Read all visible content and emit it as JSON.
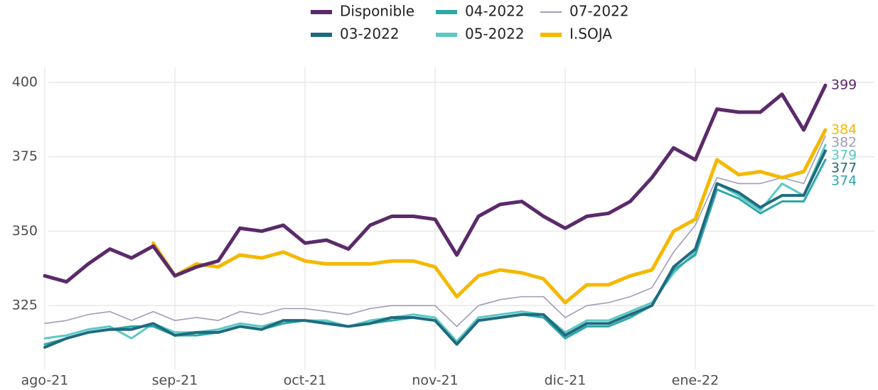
{
  "chart_data": {
    "type": "line",
    "categories": [
      "ago-21",
      null,
      null,
      null,
      null,
      null,
      "sep-21",
      null,
      null,
      null,
      null,
      null,
      "oct-21",
      null,
      null,
      null,
      null,
      null,
      "nov-21",
      null,
      null,
      null,
      null,
      null,
      "dic-21",
      null,
      null,
      null,
      null,
      null,
      "ene-22",
      null,
      null,
      null,
      null,
      null,
      null
    ],
    "series": [
      {
        "name": "Disponible",
        "color": "#5b2a6b",
        "values": [
          335,
          333,
          339,
          344,
          341,
          345,
          335,
          338,
          340,
          351,
          350,
          352,
          346,
          347,
          344,
          352,
          355,
          355,
          354,
          342,
          355,
          359,
          360,
          355,
          351,
          355,
          356,
          360,
          368,
          378,
          374,
          391,
          390,
          390,
          396,
          384,
          399
        ]
      },
      {
        "name": "03-2022",
        "color": "#1e6b80",
        "values": [
          311,
          314,
          316,
          317,
          317,
          319,
          315,
          316,
          316,
          318,
          317,
          320,
          320,
          319,
          318,
          319,
          321,
          321,
          320,
          312,
          320,
          321,
          322,
          322,
          315,
          319,
          319,
          322,
          325,
          338,
          344,
          366,
          363,
          358,
          362,
          362,
          377
        ]
      },
      {
        "name": "04-2022",
        "color": "#2fa8a8",
        "values": [
          312,
          314,
          316,
          317,
          318,
          318,
          315,
          315,
          316,
          318,
          317,
          319,
          320,
          319,
          318,
          319,
          320,
          321,
          320,
          312,
          320,
          321,
          322,
          321,
          314,
          318,
          318,
          321,
          325,
          337,
          342,
          364,
          361,
          356,
          360,
          360,
          374
        ]
      },
      {
        "name": "05-2022",
        "color": "#5cc8c4",
        "values": [
          314,
          315,
          317,
          318,
          314,
          319,
          316,
          316,
          317,
          319,
          318,
          320,
          320,
          320,
          318,
          320,
          321,
          322,
          321,
          313,
          321,
          322,
          323,
          322,
          316,
          320,
          320,
          323,
          326,
          336,
          343,
          366,
          362,
          357,
          366,
          362,
          379
        ]
      },
      {
        "name": "07-2022",
        "color": "#a09cb8",
        "values": [
          319,
          320,
          322,
          323,
          320,
          323,
          320,
          321,
          320,
          323,
          322,
          324,
          324,
          323,
          322,
          324,
          325,
          325,
          325,
          318,
          325,
          327,
          328,
          328,
          321,
          325,
          326,
          328,
          331,
          343,
          352,
          368,
          366,
          366,
          368,
          366,
          382
        ]
      },
      {
        "name": "I.SOJA",
        "color": "#f5b800",
        "values": [
          null,
          null,
          null,
          null,
          null,
          346,
          335,
          339,
          338,
          342,
          341,
          343,
          340,
          339,
          339,
          339,
          340,
          340,
          338,
          328,
          335,
          337,
          336,
          334,
          326,
          332,
          332,
          335,
          337,
          350,
          354,
          374,
          369,
          370,
          368,
          370,
          384
        ]
      }
    ],
    "ylim": [
      305,
      405
    ],
    "yticks": [
      325,
      350,
      375,
      400
    ],
    "grid": true,
    "legend": "top"
  }
}
